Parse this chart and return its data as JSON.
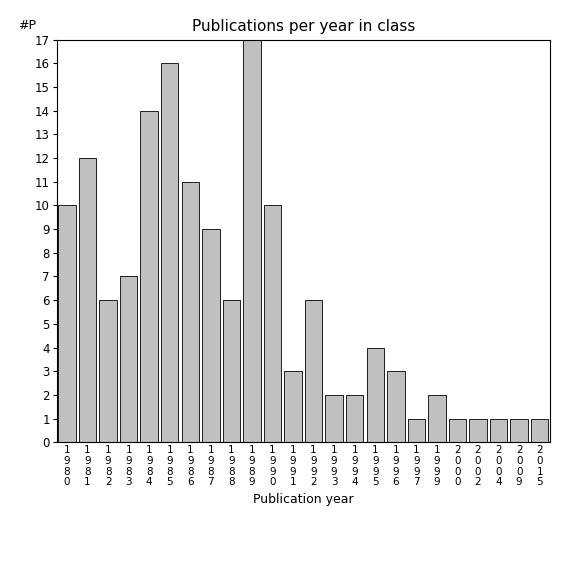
{
  "title": "Publications per year in class",
  "xlabel": "Publication year",
  "ylabel": "#P",
  "categories": [
    "1980",
    "1981",
    "1982",
    "1983",
    "1984",
    "1985",
    "1986",
    "1987",
    "1988",
    "1989",
    "1990",
    "1991",
    "1992",
    "1993",
    "1994",
    "1995",
    "1996",
    "1997",
    "1999",
    "2000",
    "2002",
    "2004",
    "2009",
    "2015"
  ],
  "values": [
    10,
    12,
    6,
    7,
    14,
    16,
    11,
    9,
    6,
    17,
    10,
    3,
    6,
    2,
    2,
    4,
    3,
    1,
    2,
    1,
    1,
    1,
    1,
    1
  ],
  "bar_color": "#c0c0c0",
  "bar_edge_color": "#000000",
  "ylim": [
    0,
    17
  ],
  "yticks": [
    0,
    1,
    2,
    3,
    4,
    5,
    6,
    7,
    8,
    9,
    10,
    11,
    12,
    13,
    14,
    15,
    16,
    17
  ],
  "background_color": "#ffffff",
  "title_fontsize": 11,
  "axis_label_fontsize": 9,
  "tick_fontsize": 8.5,
  "xtick_fontsize": 7.5
}
